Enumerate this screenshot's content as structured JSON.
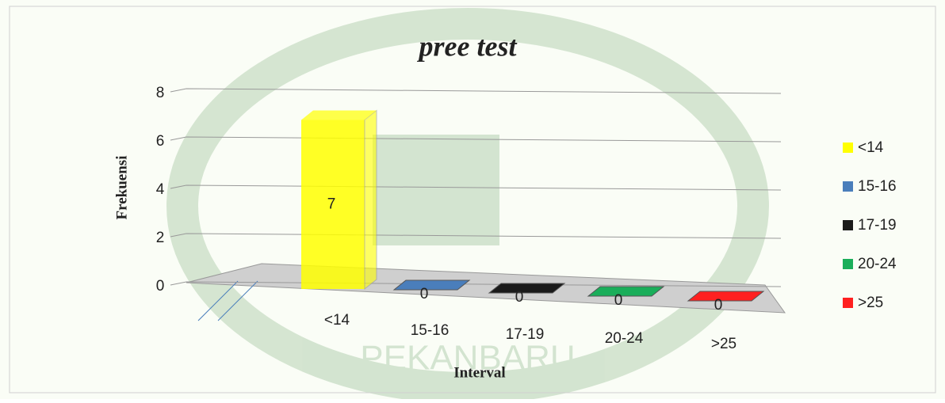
{
  "chart_data": {
    "type": "bar3d",
    "title": "pree test",
    "x_label": "Interval",
    "y_label": "Frekuensi",
    "categories": [
      "<14",
      "15-16",
      "17-19",
      "20-24",
      ">25"
    ],
    "values": [
      7,
      0,
      0,
      0,
      0
    ],
    "colors": [
      "#ffff00",
      "#4a7ebb",
      "#1a1a1a",
      "#1aae5a",
      "#ff2020"
    ],
    "ylim": [
      0,
      8
    ],
    "yticks": [
      0,
      2,
      4,
      6,
      8
    ],
    "grid": true,
    "legend": "right"
  }
}
